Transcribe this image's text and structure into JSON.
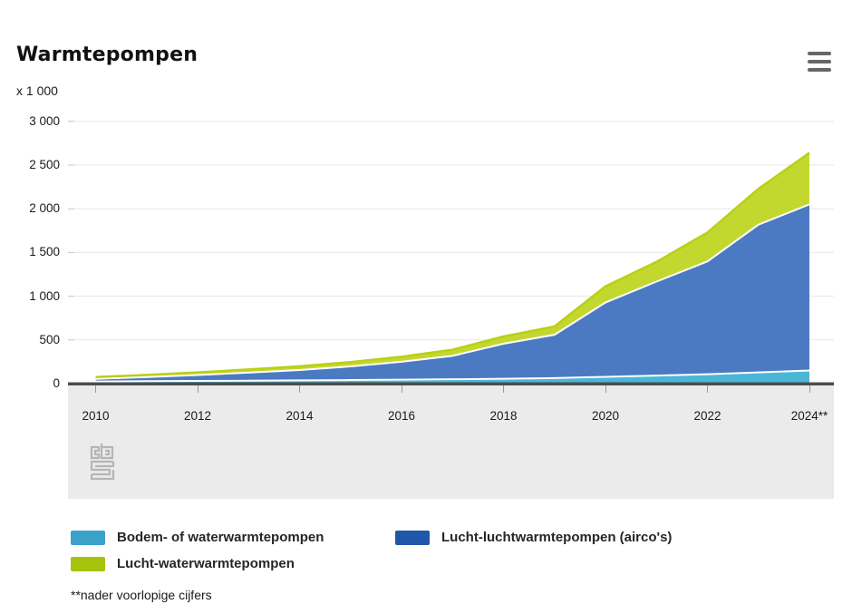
{
  "chart_data": {
    "type": "area",
    "stacked": true,
    "title": "Warmtepompen",
    "y_unit_label": "x 1 000",
    "x": [
      2010,
      2011,
      2012,
      2013,
      2014,
      2015,
      2016,
      2017,
      2018,
      2019,
      2020,
      2021,
      2022,
      2023,
      2024
    ],
    "x_tick_labels": [
      "2010",
      "2012",
      "2014",
      "2016",
      "2018",
      "2020",
      "2022",
      "2024**"
    ],
    "y_ticks": [
      "0",
      "500",
      "1 000",
      "1 500",
      "2 000",
      "2 500",
      "3 000"
    ],
    "y_tick_values": [
      0,
      500,
      1000,
      1500,
      2000,
      2500,
      3000
    ],
    "ylim": [
      0,
      3000
    ],
    "grid": true,
    "legend_position": "bottom-left",
    "axis_color": "#4d4d4d",
    "gridline_color": "#e7e7e7",
    "plot_band_background": "#ebebeb",
    "series": [
      {
        "name": "Bodem- of waterwarmtepompen",
        "fill": "#49b6d8",
        "border": "#ffffff",
        "legend_color": "#3aa2c9",
        "values": [
          25,
          28,
          31,
          34,
          37,
          41,
          45,
          50,
          56,
          64,
          78,
          92,
          108,
          128,
          150
        ]
      },
      {
        "name": "Lucht-luchtwarmtepompen (airco's)",
        "fill": "#4b7ac2",
        "border": "#ffffff",
        "legend_color": "#2157a8",
        "values": [
          30,
          47,
          68,
          92,
          119,
          156,
          205,
          268,
          400,
          495,
          850,
          1075,
          1290,
          1690,
          1900
        ]
      },
      {
        "name": "Lucht-waterwarmtepompen",
        "fill": "#c3d82f",
        "border": "#b9d014",
        "legend_color": "#a8c30b",
        "values": [
          20,
          25,
          30,
          36,
          42,
          50,
          58,
          70,
          84,
          95,
          185,
          225,
          330,
          410,
          590
        ]
      }
    ]
  },
  "footnote": "**nader voorlopige cijfers",
  "watermark": "cbs-logo"
}
